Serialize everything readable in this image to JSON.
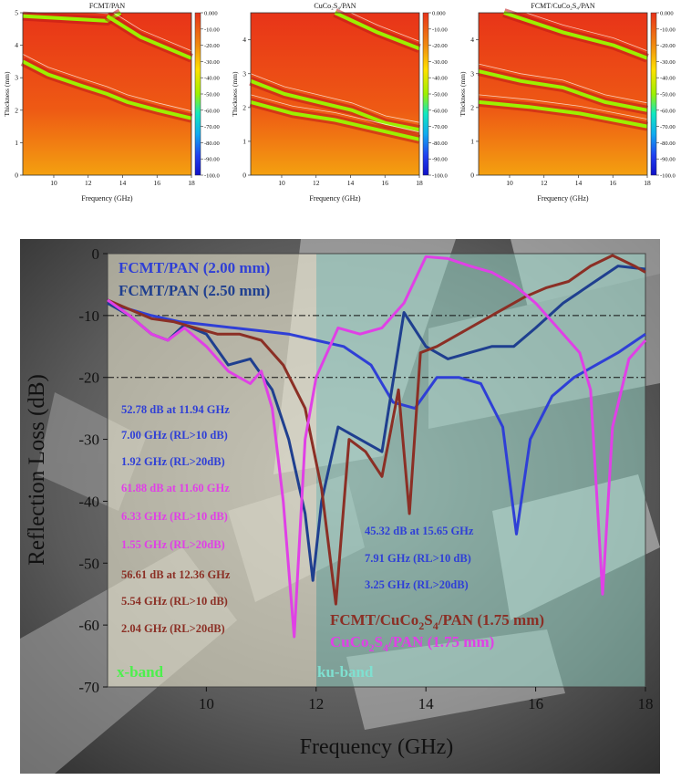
{
  "heatmaps": [
    {
      "title": "FCMT/PAN",
      "ylabel": "Thickness (mm)",
      "xlabel": "Frequency (GHz)",
      "xticks": [
        "10",
        "12",
        "14",
        "16",
        "18"
      ],
      "yticks": [
        "0",
        "1",
        "2",
        "3",
        "4",
        "5"
      ],
      "colorbar": [
        "0.000",
        "-10.00",
        "-20.00",
        "-30.00",
        "-40.00",
        "-50.00",
        "-60.00",
        "-70.00",
        "-80.00",
        "-90.00",
        "-100.0"
      ]
    },
    {
      "title": "CuCo₂S₄/PAN",
      "ylabel": "Thickness (mm)",
      "xlabel": "Frequency (GHz)",
      "xticks": [
        "10",
        "12",
        "14",
        "16",
        "18"
      ],
      "yticks": [
        "0",
        "1",
        "2",
        "3",
        "4"
      ],
      "colorbar": [
        "0.000",
        "-10.00",
        "-20.00",
        "-30.00",
        "-40.00",
        "-50.00",
        "-60.00",
        "-70.00",
        "-80.00",
        "-90.00",
        "-100.0"
      ]
    },
    {
      "title": "FCMT/CuCo₂S₄/PAN",
      "ylabel": "Thickness (mm)",
      "xlabel": "Frequency (GHz)",
      "xticks": [
        "10",
        "12",
        "14",
        "16",
        "18"
      ],
      "yticks": [
        "0",
        "1",
        "2",
        "3",
        "4"
      ],
      "colorbar": [
        "0.000",
        "-10.00",
        "-20.00",
        "-30.00",
        "-40.00",
        "-50.00",
        "-60.00",
        "-70.00",
        "-80.00",
        "-90.00",
        "-100.0"
      ]
    }
  ],
  "main_chart": {
    "ylabel": "Reflection Loss (dB)",
    "xlabel": "Frequency (GHz)",
    "xticks": [
      "10",
      "12",
      "14",
      "16",
      "18"
    ],
    "yticks": [
      "0",
      "-10",
      "-20",
      "-30",
      "-40",
      "-50",
      "-60",
      "-70"
    ],
    "band_labels": {
      "x": "x-band",
      "ku": "ku-band"
    },
    "legend": {
      "fcmt_2": "FCMT/PAN (2.00 mm)",
      "fcmt_25": "FCMT/PAN (2.50 mm)",
      "combo": "FCMT/CuCo₂S₄/PAN (1.75 mm)",
      "cucos": "CuCo₂S₄/PAN (1.75 mm)"
    },
    "annotations": {
      "a1": "52.78 dB at 11.94 GHz",
      "a2": "7.00 GHz (RL>10 dB)",
      "a3": "1.92 GHz (RL>20dB)",
      "a4": "61.88 dB at 11.60 GHz",
      "a5": "6.33 GHz (RL>10 dB)",
      "a6": "1.55 GHz (RL>20dB)",
      "a7": "56.61 dB at 12.36 GHz",
      "a8": "5.54 GHz (RL>10 dB)",
      "a9": "2.04 GHz (RL>20dB)",
      "b1": "45.32 dB at 15.65 GHz",
      "b2": "7.91 GHz (RL>10 dB)",
      "b3": "3.25 GHz (RL>20dB)"
    }
  },
  "colors": {
    "fcmt_2": "#2f3fd6",
    "fcmt_25": "#1f3f8f",
    "combo": "#8b2f25",
    "cucos": "#e040e6",
    "xband_text": "#4cf04c",
    "kuband_text": "#7fe0d0"
  },
  "chart_data": [
    {
      "type": "heatmap",
      "title": "FCMT/PAN",
      "xlabel": "Frequency (GHz)",
      "ylabel": "Thickness (mm)",
      "xlim": [
        8.2,
        18
      ],
      "ylim": [
        0,
        5
      ],
      "zlim": [
        -100,
        0
      ],
      "colorbar_label": ""
    },
    {
      "type": "heatmap",
      "title": "CuCo₂S₄/PAN",
      "xlabel": "Frequency (GHz)",
      "ylabel": "Thickness (mm)",
      "xlim": [
        8.2,
        18
      ],
      "ylim": [
        0,
        4.8
      ],
      "zlim": [
        -100,
        0
      ]
    },
    {
      "type": "heatmap",
      "title": "FCMT/CuCo₂S₄/PAN",
      "xlabel": "Frequency (GHz)",
      "ylabel": "Thickness (mm)",
      "xlim": [
        8.2,
        18
      ],
      "ylim": [
        0,
        4.8
      ],
      "zlim": [
        -100,
        0
      ]
    },
    {
      "type": "line",
      "xlabel": "Frequency (GHz)",
      "ylabel": "Reflection Loss (dB)",
      "xlim": [
        8.2,
        18
      ],
      "ylim": [
        -70,
        0
      ],
      "reference_lines_y": [
        -10,
        -20
      ],
      "series": [
        {
          "name": "FCMT/PAN (2.00 mm)",
          "x": [
            8.2,
            8.6,
            9.0,
            9.5,
            10.0,
            10.5,
            11.0,
            11.5,
            12.0,
            12.5,
            13.0,
            13.4,
            13.8,
            14.2,
            14.6,
            15.0,
            15.4,
            15.65,
            15.9,
            16.3,
            16.7,
            17.1,
            17.5,
            18.0
          ],
          "y": [
            -8,
            -9,
            -10,
            -11,
            -11.5,
            -12,
            -12.5,
            -13,
            -14,
            -15,
            -18,
            -24,
            -25,
            -20,
            -20,
            -21,
            -28,
            -45.3,
            -30,
            -23,
            -20,
            -18,
            -16,
            -13
          ]
        },
        {
          "name": "FCMT/PAN (2.50 mm)",
          "x": [
            8.2,
            8.6,
            9.0,
            9.3,
            9.6,
            10.0,
            10.4,
            10.8,
            11.2,
            11.5,
            11.8,
            11.94,
            12.1,
            12.4,
            12.8,
            13.2,
            13.6,
            14.0,
            14.4,
            14.8,
            15.2,
            15.6,
            16.0,
            16.5,
            17.0,
            17.5,
            18.0
          ],
          "y": [
            -8,
            -10,
            -13,
            -14,
            -11.5,
            -13,
            -18,
            -17,
            -22,
            -30,
            -42,
            -52.8,
            -40,
            -28,
            -30,
            -32,
            -9.5,
            -15,
            -17,
            -16,
            -15,
            -15,
            -12,
            -8,
            -5,
            -2,
            -2.5
          ]
        },
        {
          "name": "FCMT/CuCo₂S₄/PAN (1.75 mm)",
          "x": [
            8.2,
            8.6,
            9.0,
            9.4,
            9.8,
            10.2,
            10.6,
            11.0,
            11.4,
            11.8,
            12.1,
            12.36,
            12.6,
            12.9,
            13.2,
            13.5,
            13.7,
            13.9,
            14.2,
            14.6,
            15.0,
            15.4,
            15.8,
            16.2,
            16.6,
            17.0,
            17.4,
            17.8,
            18.0
          ],
          "y": [
            -7.5,
            -9,
            -10.5,
            -11,
            -12,
            -13,
            -13,
            -14,
            -18,
            -25,
            -38,
            -56.6,
            -30,
            -32,
            -36,
            -22,
            -42,
            -16,
            -15,
            -13,
            -11,
            -9,
            -7,
            -5.5,
            -4.5,
            -2,
            -0.3,
            -2,
            -3
          ]
        },
        {
          "name": "CuCo₂S₄/PAN (1.75 mm)",
          "x": [
            8.2,
            8.6,
            9.0,
            9.3,
            9.6,
            10.0,
            10.4,
            10.8,
            11.0,
            11.2,
            11.4,
            11.6,
            11.8,
            12.0,
            12.4,
            12.8,
            13.2,
            13.6,
            14.0,
            14.4,
            14.8,
            15.2,
            15.6,
            16.0,
            16.4,
            16.8,
            17.0,
            17.22,
            17.4,
            17.7,
            18.0
          ],
          "y": [
            -7.5,
            -10,
            -13,
            -14,
            -12,
            -15,
            -19,
            -21,
            -19,
            -25,
            -40,
            -61.9,
            -30,
            -20,
            -12,
            -13,
            -12,
            -8,
            -0.5,
            -0.8,
            -2,
            -3,
            -5,
            -8,
            -12,
            -16,
            -22,
            -55,
            -28,
            -17,
            -14
          ]
        }
      ]
    }
  ]
}
